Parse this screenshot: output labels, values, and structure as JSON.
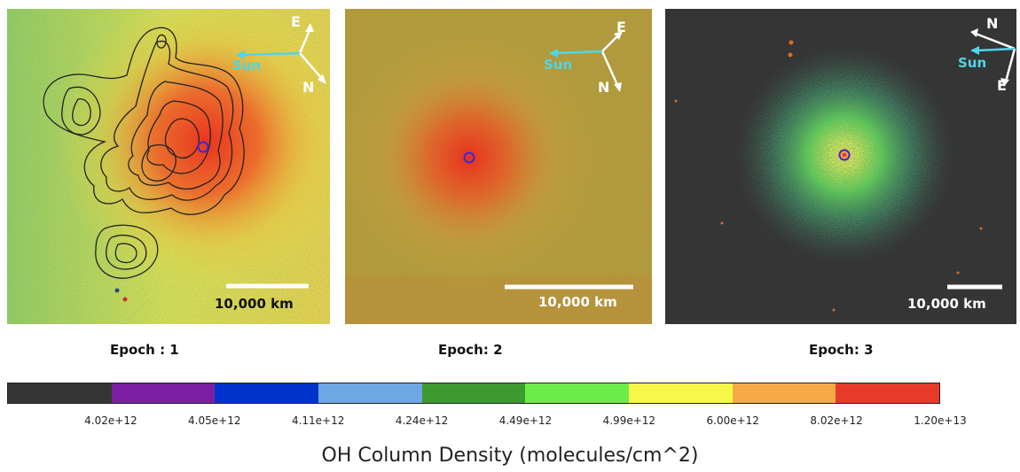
{
  "panels": [
    {
      "epoch_label": "Epoch : 1",
      "scale_label": "10,000 km",
      "sun_label": "Sun",
      "compass": [
        "E",
        "N"
      ]
    },
    {
      "epoch_label": "Epoch: 2",
      "scale_label": "10,000 km",
      "sun_label": "Sun",
      "compass": [
        "E",
        "N"
      ]
    },
    {
      "epoch_label": "Epoch: 3",
      "scale_label": "10,000 km",
      "sun_label": "Sun",
      "compass": [
        "N",
        "E"
      ]
    }
  ],
  "colorbar": {
    "colors": [
      "#353535",
      "#7b1fa2",
      "#0033cc",
      "#6fa6e4",
      "#3c9a2e",
      "#6cec48",
      "#f7f74a",
      "#f5aa47",
      "#e83a2b"
    ],
    "tick_labels": [
      "4.02e+12",
      "4.05e+12",
      "4.11e+12",
      "4.24e+12",
      "4.49e+12",
      "4.99e+12",
      "6.00e+12",
      "8.02e+12",
      "1.20e+13"
    ],
    "title": "OH Column Density (molecules/cm^2)"
  },
  "style": {
    "arrow_white": "#ffffff",
    "sun_cyan": "#4fd6e8",
    "nucleus_marker": "#3a2bd6",
    "contour_color": "#222222",
    "epoch3_background": "#353535"
  }
}
